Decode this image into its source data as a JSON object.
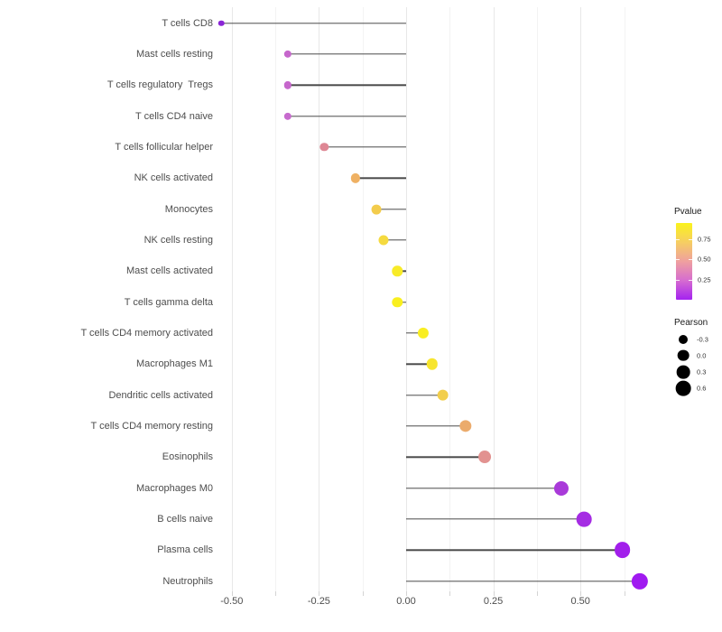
{
  "chart_data": {
    "type": "lollipop",
    "orientation": "horizontal",
    "title": "",
    "xlabel": "",
    "ylabel": "",
    "grid": "on",
    "background": "#ffffff",
    "xlim": [
      -0.57,
      0.72
    ],
    "x_ticks": {
      "values": [
        -0.5,
        -0.25,
        0.0,
        0.25,
        0.5
      ],
      "labels": [
        "-0.50",
        "-0.25",
        "0.00",
        "0.25",
        "0.50"
      ],
      "minor_values": [
        -0.375,
        -0.125,
        0.125,
        0.375,
        0.625
      ]
    },
    "stem_origin": 0,
    "points": [
      {
        "label": "T cells CD8",
        "pearson": -0.53,
        "dot_color": "#8A25D6"
      },
      {
        "label": "Mast cells resting",
        "pearson": -0.34,
        "dot_color": "#C667CC"
      },
      {
        "label": "T cells regulatory  Tregs",
        "pearson": -0.34,
        "dot_color": "#C667CC"
      },
      {
        "label": "T cells CD4 naive",
        "pearson": -0.34,
        "dot_color": "#C76BCE"
      },
      {
        "label": "T cells follicular helper",
        "pearson": -0.235,
        "dot_color": "#DE8794"
      },
      {
        "label": "NK cells activated",
        "pearson": -0.145,
        "dot_color": "#EFB163"
      },
      {
        "label": "Monocytes",
        "pearson": -0.085,
        "dot_color": "#F3CC4C"
      },
      {
        "label": "NK cells resting",
        "pearson": -0.065,
        "dot_color": "#F5DA3F"
      },
      {
        "label": "Mast cells activated",
        "pearson": -0.025,
        "dot_color": "#F8EB28"
      },
      {
        "label": "T cells gamma delta",
        "pearson": -0.025,
        "dot_color": "#F9EF1F"
      },
      {
        "label": "T cells CD4 memory activated",
        "pearson": 0.05,
        "dot_color": "#F9EE22"
      },
      {
        "label": "Macrophages M1",
        "pearson": 0.075,
        "dot_color": "#F7E52E"
      },
      {
        "label": "Dendritic cells activated",
        "pearson": 0.105,
        "dot_color": "#F2CE4B"
      },
      {
        "label": "T cells CD4 memory resting",
        "pearson": 0.17,
        "dot_color": "#EBAB6C"
      },
      {
        "label": "Eosinophils",
        "pearson": 0.225,
        "dot_color": "#E29290"
      },
      {
        "label": "Macrophages M0",
        "pearson": 0.445,
        "dot_color": "#A93AD9"
      },
      {
        "label": "B cells naive",
        "pearson": 0.51,
        "dot_color": "#A52CE3"
      },
      {
        "label": "Plasma cells",
        "pearson": 0.62,
        "dot_color": "#A21FEB"
      },
      {
        "label": "Neutrophils",
        "pearson": 0.67,
        "dot_color": "#A01AF0"
      }
    ],
    "legend": {
      "position": "right-inside",
      "pvalue": {
        "title": "Pvalue",
        "tick_labels": [
          "0.75",
          "0.50",
          "0.25"
        ],
        "tick_values": [
          0.75,
          0.5,
          0.25
        ],
        "bar_range": [
          0,
          0.955
        ],
        "gradient_top_to_bottom": [
          "#FAF31C",
          "#F6CE62",
          "#EFA09F",
          "#D66CD0",
          "#A422F0"
        ]
      },
      "pearson": {
        "title": "Pearson",
        "item_labels": [
          "-0.3",
          "0.0",
          "0.3",
          "0.6"
        ],
        "item_values": [
          -0.3,
          0.0,
          0.3,
          0.6
        ],
        "dot_color": "#000000"
      }
    },
    "colors": {
      "stem": "#4a4a4a",
      "axis_text": "#4d4d4d",
      "grid_major": "#e8e8e8",
      "grid_minor": "#f3f3f3"
    }
  }
}
